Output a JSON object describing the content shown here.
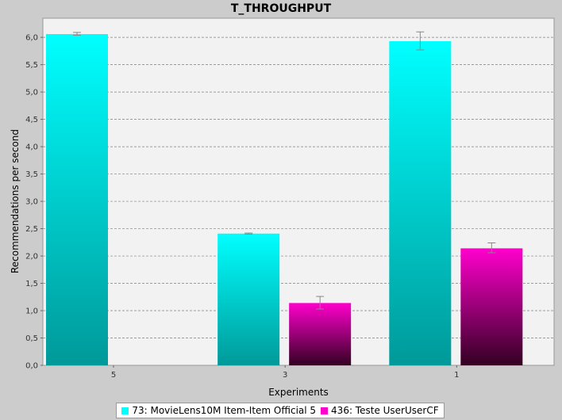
{
  "chart_data": {
    "type": "bar",
    "title": "T_THROUGHPUT",
    "xlabel": "Experiments",
    "ylabel": "Recommendations per second",
    "categories": [
      "5",
      "3",
      "1"
    ],
    "ylim": [
      0,
      6.35
    ],
    "yticks": [
      "0,0",
      "0,5",
      "1,0",
      "1,5",
      "2,0",
      "2,5",
      "3,0",
      "3,5",
      "4,0",
      "4,5",
      "5,0",
      "5,5",
      "6,0"
    ],
    "grid": true,
    "legend_position": "bottom",
    "series": [
      {
        "name": "73: MovieLens10M Item-Item Official 5",
        "values": [
          6.06,
          2.41,
          5.93
        ],
        "err_low": [
          6.04,
          2.4,
          5.77
        ],
        "err_high": [
          6.09,
          2.42,
          6.1
        ],
        "color_top": "#00ffff",
        "color_bottom": "#009999"
      },
      {
        "name": "436: Teste UserUserCF",
        "values": [
          null,
          1.14,
          2.14
        ],
        "err_low": [
          null,
          1.03,
          2.06
        ],
        "err_high": [
          null,
          1.26,
          2.24
        ],
        "color_top": "#ff00cc",
        "color_bottom": "#330022"
      }
    ]
  }
}
